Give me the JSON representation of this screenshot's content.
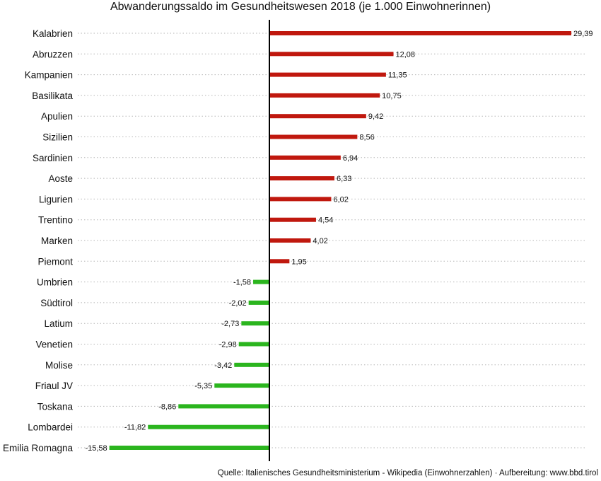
{
  "chart_data": {
    "type": "bar",
    "orientation": "horizontal",
    "title": "Abwanderungssaldo im Gesundheitswesen 2018 (je 1.000 Einwohnerinnen)",
    "source": "Quelle: Italienisches Gesundheitsministerium - Wikipedia (Einwohnerzahlen) · Aufbereitung: www.bbd.tirol",
    "categories": [
      "Kalabrien",
      "Abruzzen",
      "Kampanien",
      "Basilikata",
      "Apulien",
      "Sizilien",
      "Sardinien",
      "Aoste",
      "Ligurien",
      "Trentino",
      "Marken",
      "Piemont",
      "Umbrien",
      "Südtirol",
      "Latium",
      "Venetien",
      "Molise",
      "Friaul JV",
      "Toskana",
      "Lombardei",
      "Emilia Romagna"
    ],
    "values": [
      29.39,
      12.08,
      11.35,
      10.75,
      9.42,
      8.56,
      6.94,
      6.33,
      6.02,
      4.54,
      4.02,
      1.95,
      -1.58,
      -2.02,
      -2.73,
      -2.98,
      -3.42,
      -5.35,
      -8.86,
      -11.82,
      -15.58
    ],
    "value_labels": [
      "29,39",
      "12,08",
      "11,35",
      "10,75",
      "9,42",
      "8,56",
      "6,94",
      "6,33",
      "6,02",
      "4,54",
      "4,02",
      "1,95",
      "-1,58",
      "-2,02",
      "-2,73",
      "-2,98",
      "-3,42",
      "-5,35",
      "-8,86",
      "-11,82",
      "-15,58"
    ],
    "colors": {
      "positive": "#c0180e",
      "negative": "#2bb51e",
      "axis": "#000000",
      "grid": "#b5b5b5"
    },
    "grid": true,
    "legend": "none"
  }
}
